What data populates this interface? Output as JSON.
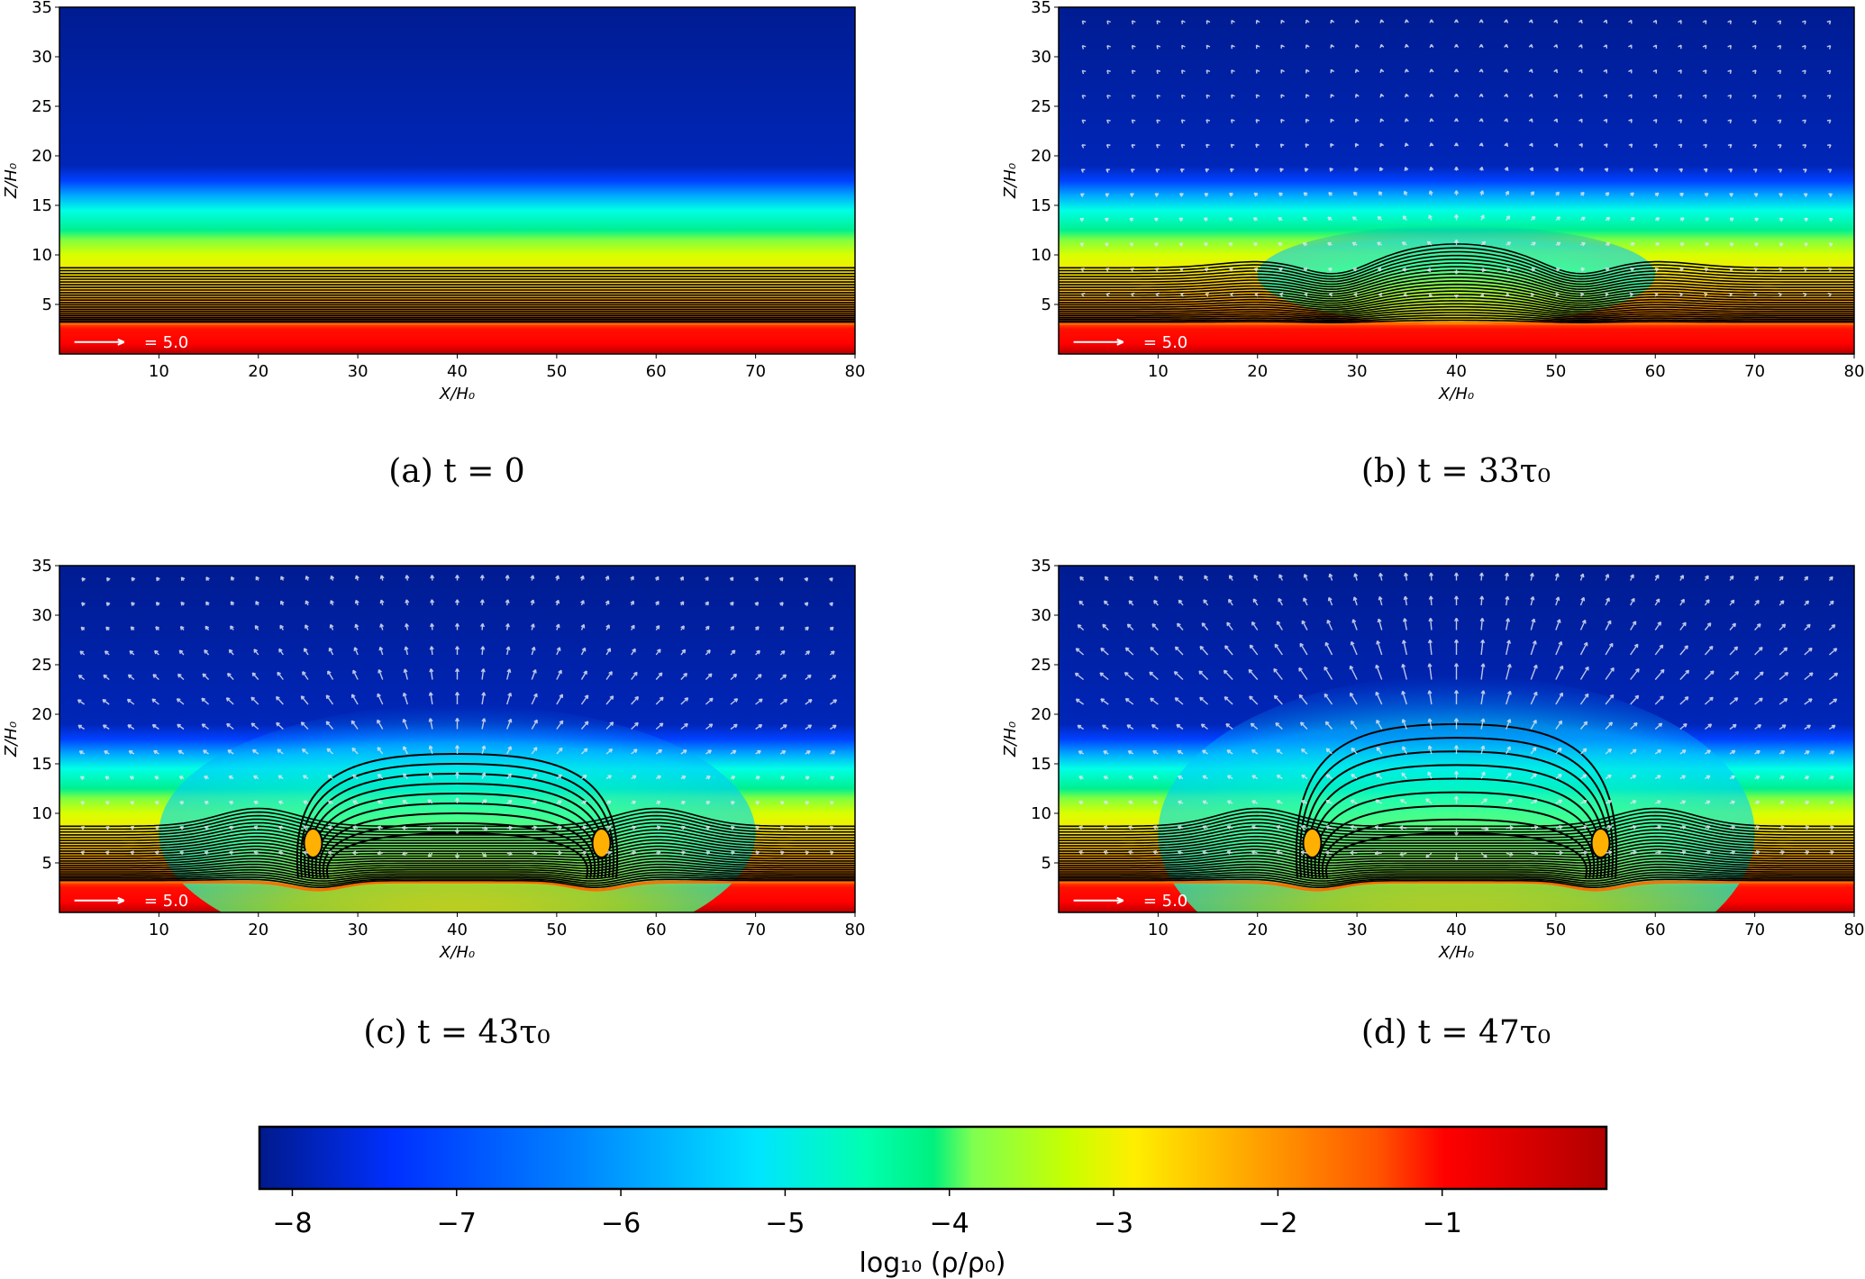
{
  "chart_data": [
    {
      "type": "heatmap",
      "panel": "a",
      "caption": "(a) t = 0",
      "time_tau0": 0,
      "xlabel": "X/H₀",
      "ylabel": "Z/H₀",
      "xlim": [
        0,
        80
      ],
      "ylim": [
        0,
        35
      ],
      "xticks": [
        "10",
        "20",
        "30",
        "40",
        "50",
        "60",
        "70",
        "80"
      ],
      "yticks": [
        "5",
        "10",
        "15",
        "20",
        "25",
        "30",
        "35"
      ],
      "quiver_key": "= 5.0",
      "dome_top_Z": 0,
      "has_quiver": false,
      "arches": false
    },
    {
      "type": "heatmap",
      "panel": "b",
      "caption": "(b) t = 33τ₀",
      "time_tau0": 33,
      "xlabel": "X/H₀",
      "ylabel": "Z/H₀",
      "xlim": [
        0,
        80
      ],
      "ylim": [
        0,
        35
      ],
      "xticks": [
        "10",
        "20",
        "30",
        "40",
        "50",
        "60",
        "70",
        "80"
      ],
      "yticks": [
        "5",
        "10",
        "15",
        "20",
        "25",
        "30",
        "35"
      ],
      "quiver_key": "= 5.0",
      "dome_top_Z": 13,
      "has_quiver": true,
      "arches": false
    },
    {
      "type": "heatmap",
      "panel": "c",
      "caption": "(c) t = 43τ₀",
      "time_tau0": 43,
      "xlabel": "X/H₀",
      "ylabel": "Z/H₀",
      "xlim": [
        0,
        80
      ],
      "ylim": [
        0,
        35
      ],
      "xticks": [
        "10",
        "20",
        "30",
        "40",
        "50",
        "60",
        "70",
        "80"
      ],
      "yticks": [
        "5",
        "10",
        "15",
        "20",
        "25",
        "30",
        "35"
      ],
      "quiver_key": "= 5.0",
      "dome_top_Z": 21,
      "has_quiver": true,
      "arches": true,
      "arch_top_Z": 16
    },
    {
      "type": "heatmap",
      "panel": "d",
      "caption": "(d) t = 47τ₀",
      "time_tau0": 47,
      "xlabel": "X/H₀",
      "ylabel": "Z/H₀",
      "xlim": [
        0,
        80
      ],
      "ylim": [
        0,
        35
      ],
      "xticks": [
        "10",
        "20",
        "30",
        "40",
        "50",
        "60",
        "70",
        "80"
      ],
      "yticks": [
        "5",
        "10",
        "15",
        "20",
        "25",
        "30",
        "35"
      ],
      "quiver_key": "= 5.0",
      "dome_top_Z": 24,
      "has_quiver": true,
      "arches": true,
      "arch_top_Z": 19
    }
  ],
  "colorbar": {
    "label": "log₁₀ (ρ/ρ₀)",
    "range": [
      -8.2,
      0
    ],
    "ticks": [
      "−8",
      "−7",
      "−6",
      "−5",
      "−4",
      "−3",
      "−2",
      "−1"
    ],
    "tick_values": [
      -8,
      -7,
      -6,
      -5,
      -4,
      -3,
      -2,
      -1
    ],
    "colormap": [
      "#001a8c",
      "#0030ff",
      "#0080ff",
      "#00e5ff",
      "#00ffb0",
      "#00f080",
      "#80ff50",
      "#c8ff00",
      "#ffee00",
      "#ffaa00",
      "#ff5500",
      "#ff0000",
      "#b00000"
    ]
  }
}
